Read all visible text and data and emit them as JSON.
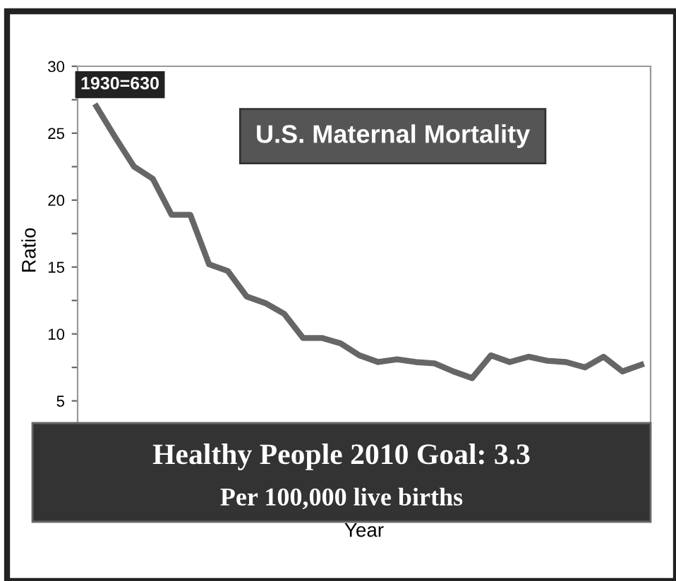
{
  "chart_data": {
    "type": "line",
    "title": "U.S. Maternal Mortality",
    "ylabel": "Ratio",
    "xlabel": "Year",
    "annotations": [
      "1930=630",
      "Healthy People 2010 Goal: 3.3",
      "Per 100,000 live births"
    ],
    "categories": [
      null,
      null,
      null,
      null,
      null,
      null,
      null,
      null,
      null,
      null,
      null,
      null,
      null,
      null,
      null,
      null,
      null,
      null,
      null,
      null,
      null,
      null,
      null,
      null,
      null,
      null,
      null,
      null,
      null,
      null
    ],
    "series": [
      {
        "color": "#666666",
        "values": [
          27.0,
          24.7,
          22.5,
          21.6,
          18.9,
          18.9,
          15.2,
          14.7,
          12.8,
          12.3,
          11.5,
          9.7,
          9.7,
          9.3,
          8.4,
          7.9,
          8.1,
          7.9,
          7.8,
          7.2,
          6.7,
          8.4,
          7.9,
          8.3,
          8.0,
          7.9,
          7.5,
          8.3,
          7.2,
          7.7
        ]
      }
    ],
    "ylim": [
      2.5,
      30
    ],
    "yticks": [
      5,
      {
        "value": 7.5,
        "label": null
      },
      10,
      {
        "value": 12.5,
        "label": null
      },
      15,
      {
        "value": 17.5,
        "label": null
      },
      20,
      {
        "value": 22.5,
        "label": null
      },
      25,
      {
        "value": 27.5,
        "label": null
      },
      30
    ],
    "grid": false,
    "legend": false,
    "tick_labels": "y",
    "marker": "none",
    "line_style": "solid"
  }
}
